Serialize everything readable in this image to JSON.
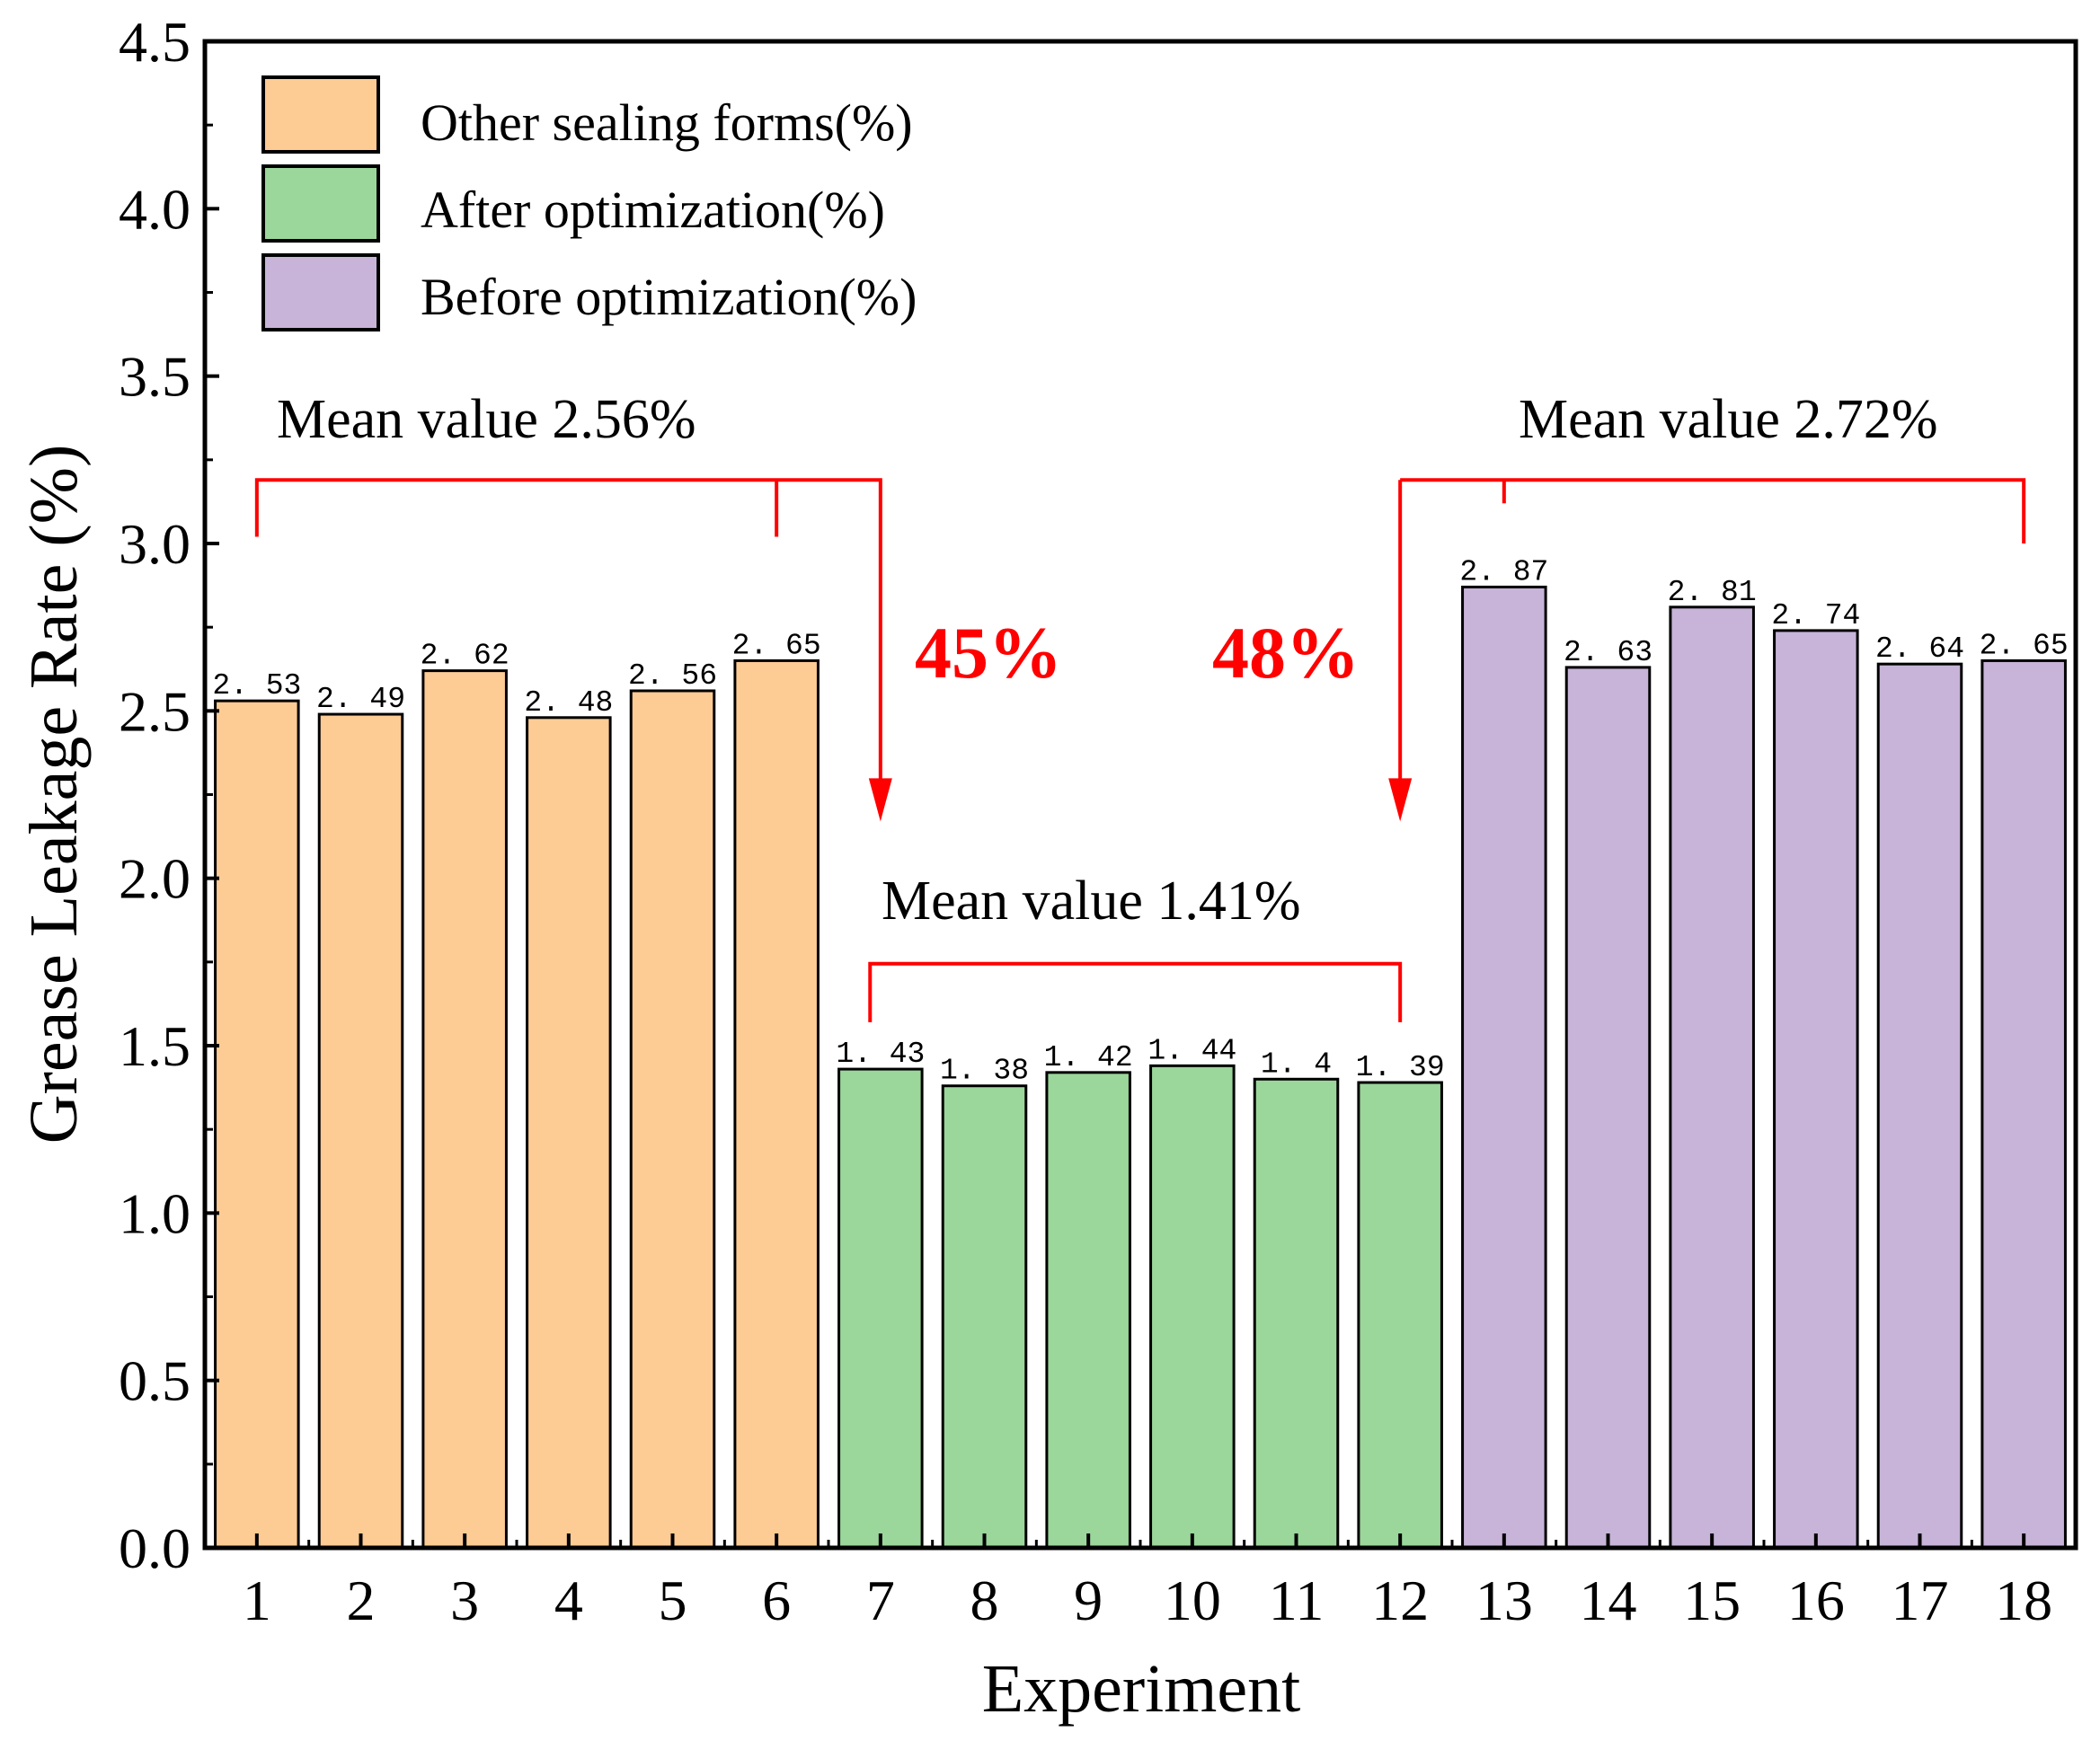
{
  "chart_data": {
    "type": "bar",
    "title": "",
    "xlabel": "Experiment",
    "ylabel": "Grease Leakage Rate (%)",
    "ylim": [
      0,
      4.5
    ],
    "yticks": [
      "0.0",
      "0.5",
      "1.0",
      "1.5",
      "2.0",
      "2.5",
      "3.0",
      "3.5",
      "4.0",
      "4.5"
    ],
    "categories": [
      "1",
      "2",
      "3",
      "4",
      "5",
      "6",
      "7",
      "8",
      "9",
      "10",
      "11",
      "12",
      "13",
      "14",
      "15",
      "16",
      "17",
      "18"
    ],
    "values": [
      2.53,
      2.49,
      2.62,
      2.48,
      2.56,
      2.65,
      1.43,
      1.38,
      1.42,
      1.44,
      1.4,
      1.39,
      2.87,
      2.63,
      2.81,
      2.74,
      2.64,
      2.65
    ],
    "value_labels": [
      "2. 53",
      "2. 49",
      "2. 62",
      "2. 48",
      "2. 56",
      "2. 65",
      "1. 43",
      "1. 38",
      "1. 42",
      "1. 44",
      "1. 4",
      "1. 39",
      "2. 87",
      "2. 63",
      "2. 81",
      "2. 74",
      "2. 64",
      "2. 65"
    ],
    "series": [
      {
        "name": "Other sealing forms(%)",
        "color": "#FDCB94",
        "range": [
          1,
          6
        ]
      },
      {
        "name": "After optimization(%)",
        "color": "#9BD69B",
        "range": [
          7,
          12
        ]
      },
      {
        "name": "Before optimization(%)",
        "color": "#C7B4D8",
        "range": [
          13,
          18
        ]
      }
    ],
    "legend": "top-left",
    "grid": false,
    "annotations": {
      "mean_other": "Mean value 2.56%",
      "mean_after": "Mean value 1.41%",
      "mean_before": "Mean value 2.72%",
      "reduction_other": "45%",
      "reduction_before": "48%",
      "annotation_color": "#FF0000"
    }
  }
}
